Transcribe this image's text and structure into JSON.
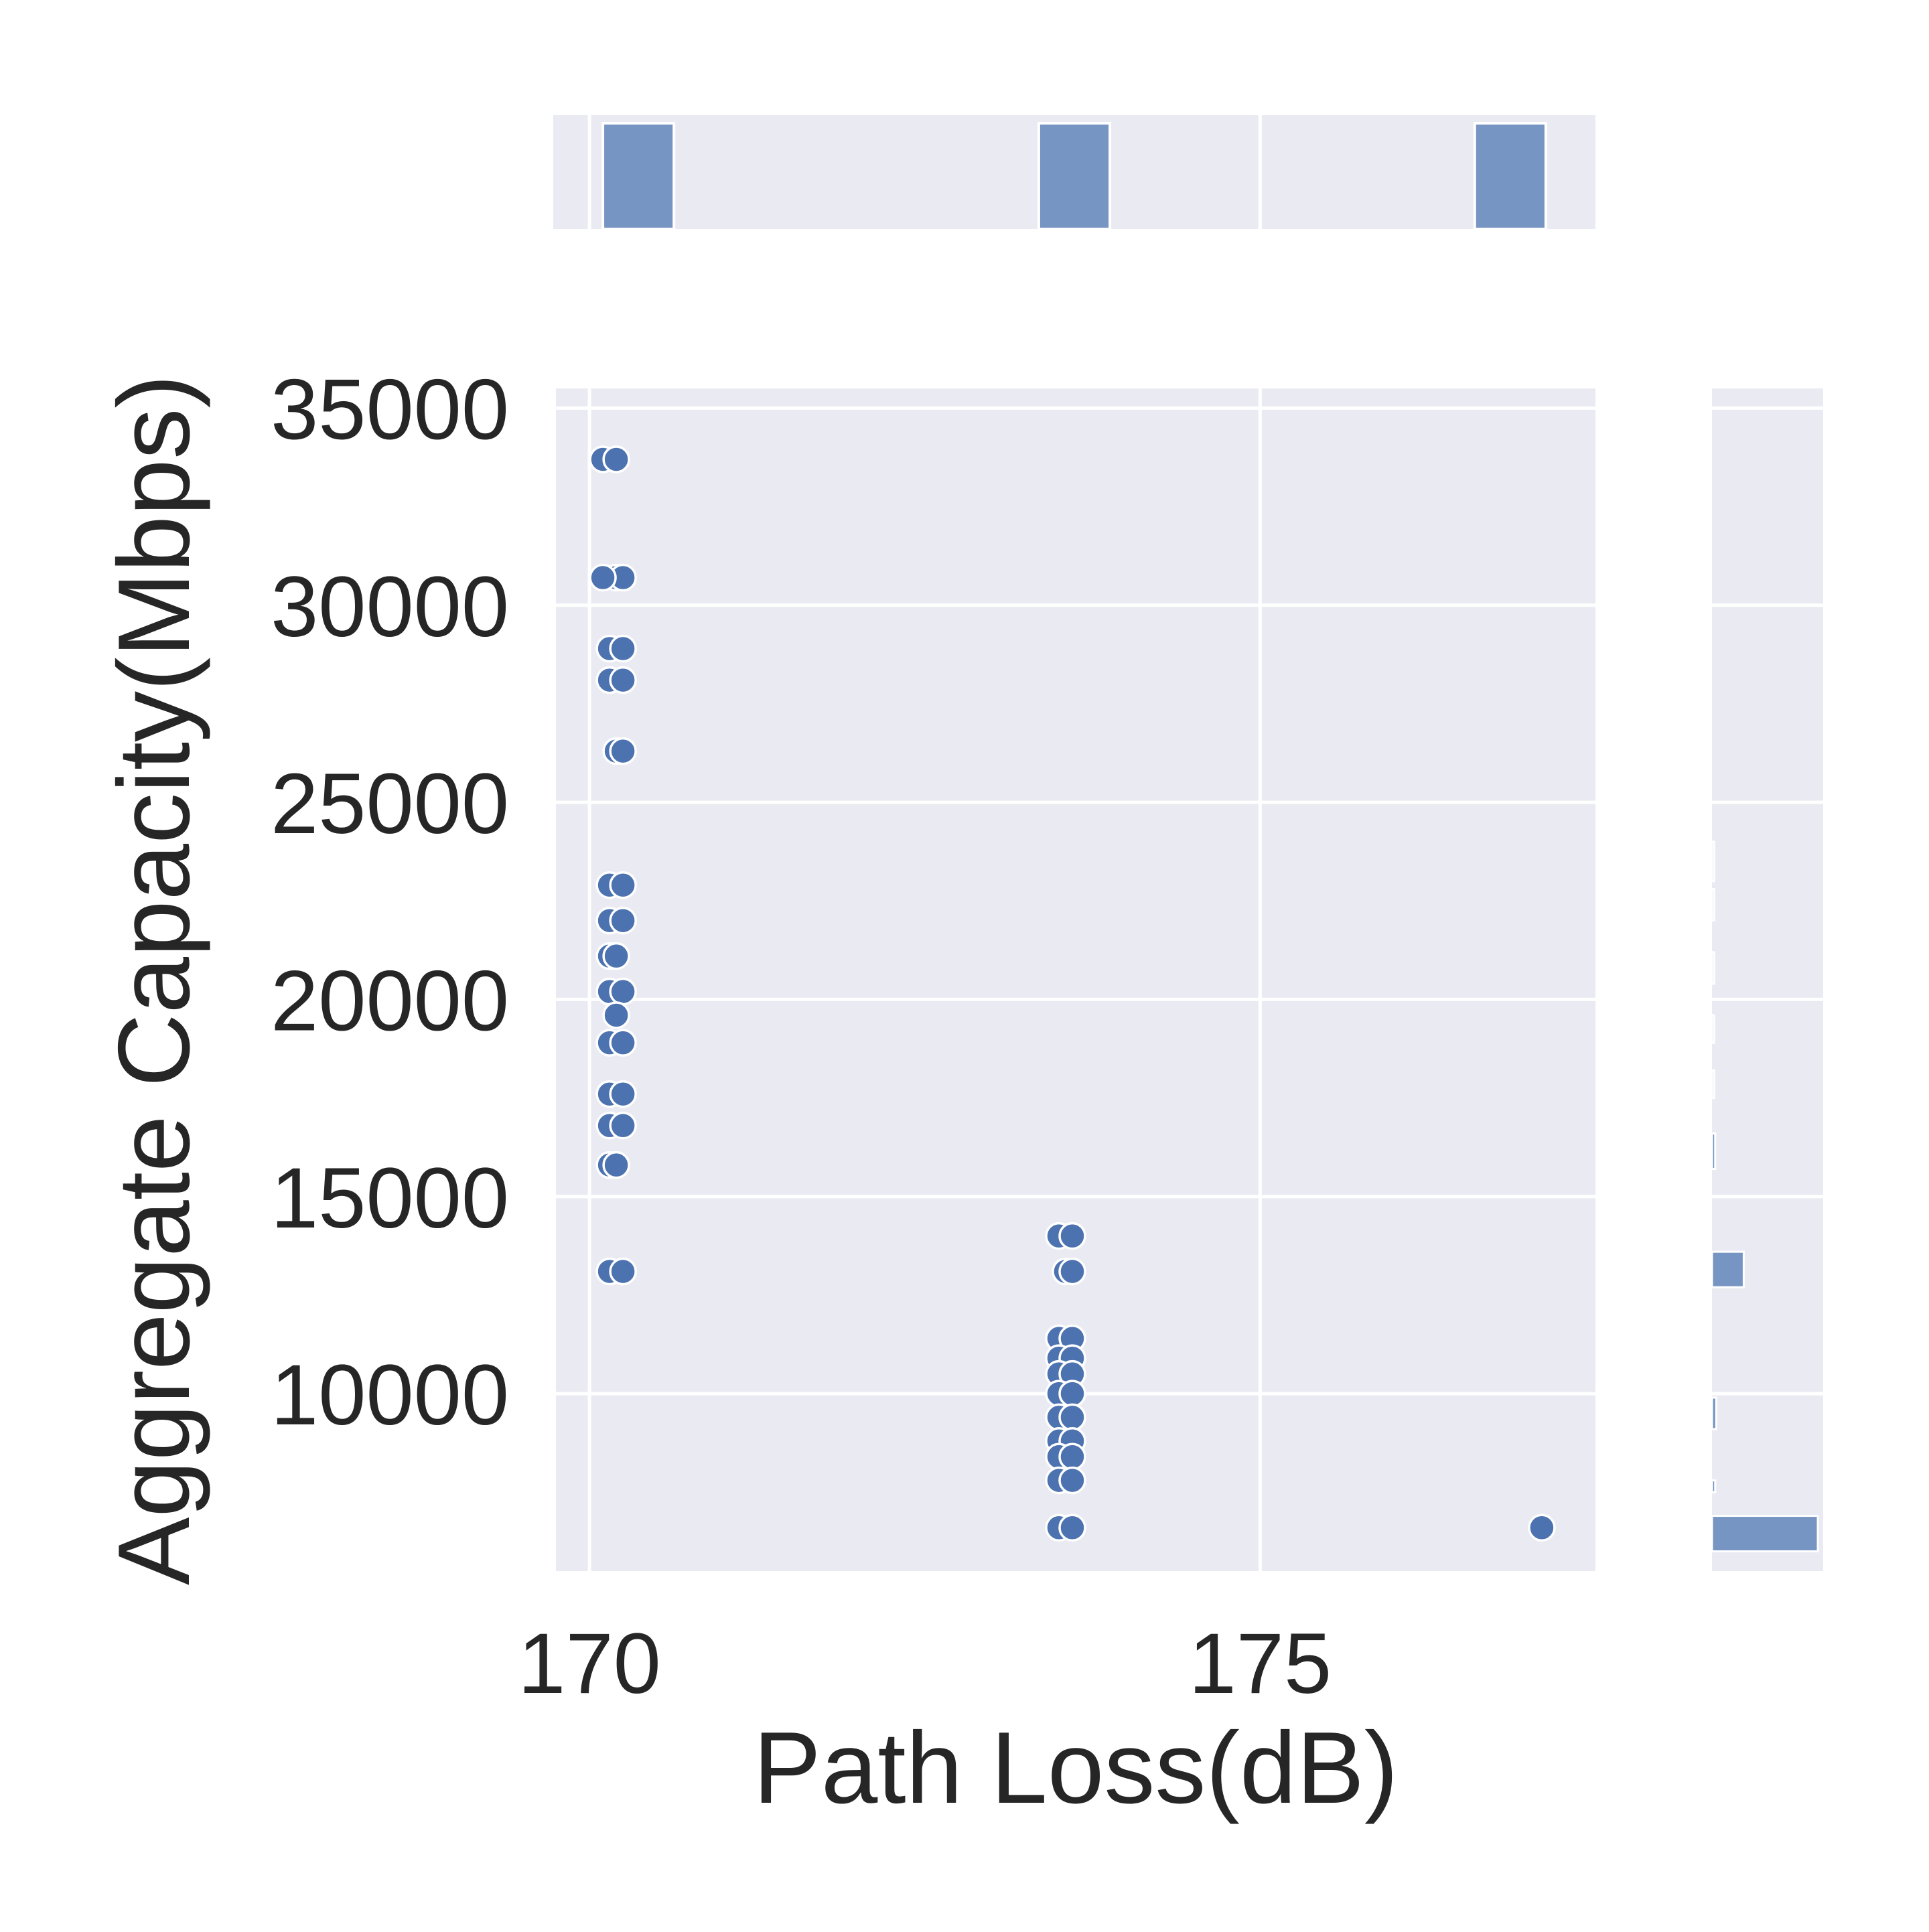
{
  "chart_data": {
    "type": "scatter",
    "title": "",
    "xlabel": "Path Loss(dB)",
    "ylabel": "Aggregate Capacity(Mbps)",
    "xlim": [
      169.75,
      177.5
    ],
    "ylim": [
      5500,
      35500
    ],
    "xticks": [
      170,
      175
    ],
    "xtick_labels": [
      "170",
      "175"
    ],
    "yticks": [
      10000,
      15000,
      20000,
      25000,
      30000,
      35000
    ],
    "ytick_labels": [
      "10000",
      "15000",
      "20000",
      "25000",
      "30000",
      "35000"
    ],
    "grid": true,
    "style": "seaborn-darkgrid jointplot",
    "colors": {
      "background": "#eaeaf2",
      "grid": "#ffffff",
      "point": "#4c72b0",
      "bar": "#7795c3",
      "text": "#262626"
    },
    "points": [
      {
        "x": 170.1,
        "y": 33700
      },
      {
        "x": 170.2,
        "y": 33700
      },
      {
        "x": 170.2,
        "y": 30700
      },
      {
        "x": 170.25,
        "y": 30700
      },
      {
        "x": 170.1,
        "y": 30700
      },
      {
        "x": 170.15,
        "y": 28900
      },
      {
        "x": 170.25,
        "y": 28900
      },
      {
        "x": 170.15,
        "y": 28100
      },
      {
        "x": 170.25,
        "y": 28100
      },
      {
        "x": 170.2,
        "y": 26300
      },
      {
        "x": 170.25,
        "y": 26300
      },
      {
        "x": 170.15,
        "y": 22900
      },
      {
        "x": 170.25,
        "y": 22900
      },
      {
        "x": 170.15,
        "y": 22000
      },
      {
        "x": 170.25,
        "y": 22000
      },
      {
        "x": 170.15,
        "y": 21100
      },
      {
        "x": 170.2,
        "y": 21100
      },
      {
        "x": 170.15,
        "y": 20200
      },
      {
        "x": 170.25,
        "y": 20200
      },
      {
        "x": 170.2,
        "y": 19600
      },
      {
        "x": 170.15,
        "y": 18900
      },
      {
        "x": 170.25,
        "y": 18900
      },
      {
        "x": 170.15,
        "y": 17600
      },
      {
        "x": 170.25,
        "y": 17600
      },
      {
        "x": 170.15,
        "y": 16800
      },
      {
        "x": 170.25,
        "y": 16800
      },
      {
        "x": 170.15,
        "y": 15800
      },
      {
        "x": 170.2,
        "y": 15800
      },
      {
        "x": 170.15,
        "y": 13100
      },
      {
        "x": 170.25,
        "y": 13100
      },
      {
        "x": 173.5,
        "y": 14000
      },
      {
        "x": 173.6,
        "y": 14000
      },
      {
        "x": 173.55,
        "y": 13100
      },
      {
        "x": 173.6,
        "y": 13100
      },
      {
        "x": 173.5,
        "y": 11400
      },
      {
        "x": 173.6,
        "y": 11400
      },
      {
        "x": 173.5,
        "y": 10900
      },
      {
        "x": 173.6,
        "y": 10900
      },
      {
        "x": 173.5,
        "y": 10500
      },
      {
        "x": 173.6,
        "y": 10500
      },
      {
        "x": 173.5,
        "y": 10000
      },
      {
        "x": 173.6,
        "y": 10000
      },
      {
        "x": 173.5,
        "y": 9400
      },
      {
        "x": 173.6,
        "y": 9400
      },
      {
        "x": 173.5,
        "y": 8800
      },
      {
        "x": 173.6,
        "y": 8800
      },
      {
        "x": 173.5,
        "y": 8400
      },
      {
        "x": 173.6,
        "y": 8400
      },
      {
        "x": 173.5,
        "y": 7800
      },
      {
        "x": 173.6,
        "y": 7800
      },
      {
        "x": 173.5,
        "y": 6600
      },
      {
        "x": 173.6,
        "y": 6600
      },
      {
        "x": 177.1,
        "y": 6600
      }
    ],
    "x_histogram": {
      "bins": [
        {
          "x0": 170.1,
          "x1": 170.63,
          "count": 1
        },
        {
          "x0": 173.35,
          "x1": 173.88,
          "count": 1
        },
        {
          "x0": 176.6,
          "x1": 177.13,
          "count": 1
        }
      ]
    },
    "y_histogram": {
      "bins": [
        {
          "y0": 6000,
          "y1": 6900,
          "count": 1.0
        },
        {
          "y0": 7500,
          "y1": 7800,
          "count": 0.03
        },
        {
          "y0": 9100,
          "y1": 9900,
          "count": 0.04
        },
        {
          "y0": 12700,
          "y1": 13600,
          "count": 0.3
        },
        {
          "y0": 15700,
          "y1": 16600,
          "count": 0.03
        },
        {
          "y0": 17500,
          "y1": 18200,
          "count": 0.02
        },
        {
          "y0": 18900,
          "y1": 19600,
          "count": 0.02
        },
        {
          "y0": 20400,
          "y1": 21200,
          "count": 0.02
        },
        {
          "y0": 22000,
          "y1": 22800,
          "count": 0.02
        },
        {
          "y0": 23000,
          "y1": 24000,
          "count": 0.02
        }
      ]
    }
  }
}
